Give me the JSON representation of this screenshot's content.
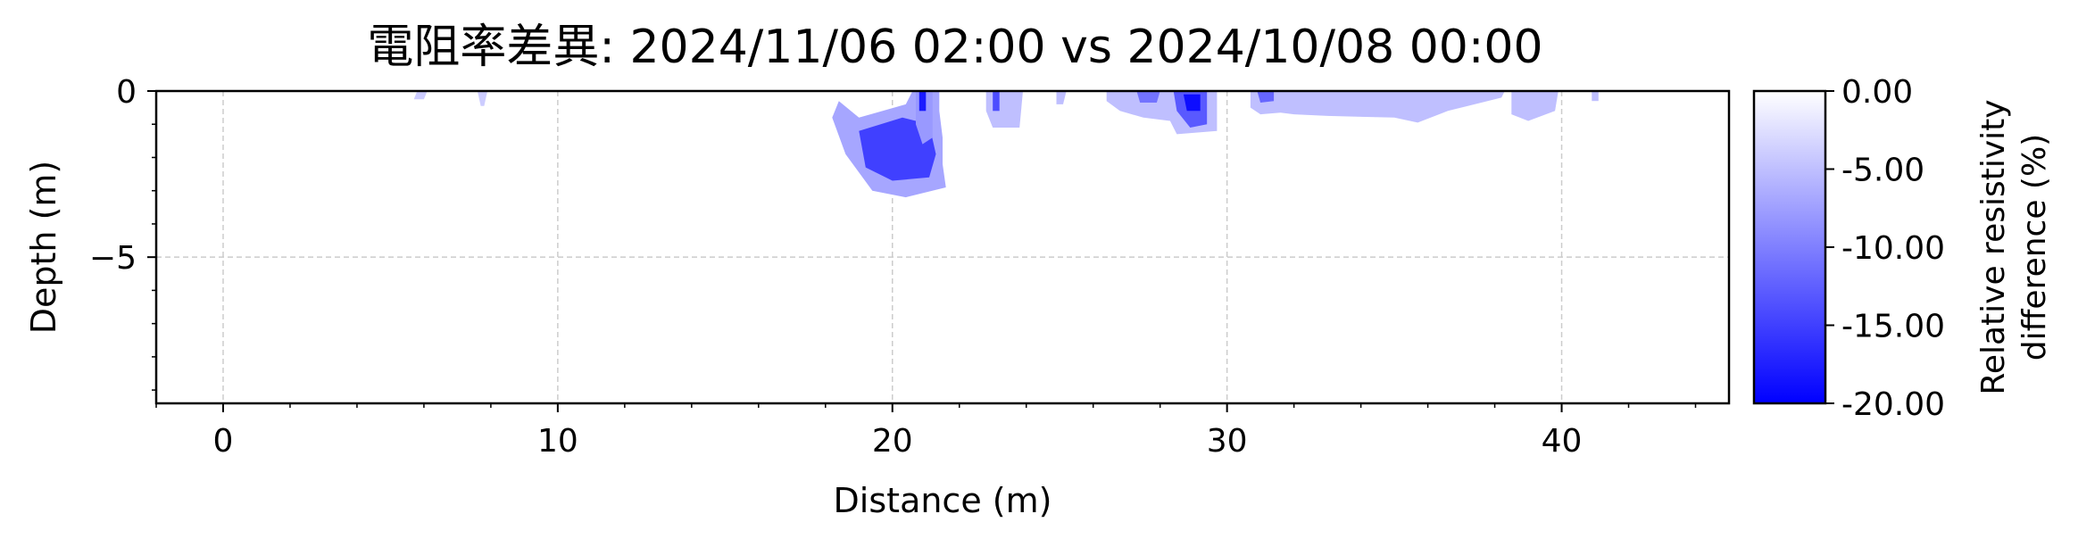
{
  "chart_data": {
    "type": "heatmap",
    "title": "電阻率差異: 2024/11/06 02:00 vs 2024/10/08 00:00",
    "xlabel": "Distance (m)",
    "ylabel": "Depth (m)",
    "xlim": [
      -2,
      45
    ],
    "ylim": [
      -9.4,
      0
    ],
    "x_ticks": [
      0,
      10,
      20,
      30,
      40
    ],
    "x_tick_labels": [
      "0",
      "10",
      "20",
      "30",
      "40"
    ],
    "y_ticks": [
      0,
      -5
    ],
    "y_tick_labels": [
      "0",
      "−5"
    ],
    "grid": true,
    "colorbar": {
      "label": "Relative resistivity\ndifference (%)",
      "label_lines": [
        "Relative resistivity",
        "difference (%)"
      ],
      "range": [
        -20,
        0
      ],
      "ticks": [
        0,
        -5,
        -10,
        -15,
        -20
      ],
      "tick_labels": [
        "0.00",
        "-5.00",
        "-10.00",
        "-15.00",
        "-20.00"
      ],
      "colors": [
        "#0000ff",
        "#ffffff"
      ]
    },
    "regions": [
      {
        "value": -4,
        "points": [
          [
            5.8,
            0
          ],
          [
            6.1,
            0
          ],
          [
            6.0,
            -0.25
          ],
          [
            5.7,
            -0.25
          ]
        ]
      },
      {
        "value": -4,
        "points": [
          [
            7.6,
            0
          ],
          [
            7.9,
            0
          ],
          [
            7.8,
            -0.45
          ],
          [
            7.7,
            -0.45
          ]
        ]
      },
      {
        "value": -7,
        "points": [
          [
            18.4,
            -0.3
          ],
          [
            19.0,
            -0.8
          ],
          [
            20.4,
            -0.4
          ],
          [
            20.6,
            0
          ],
          [
            21.4,
            0
          ],
          [
            21.4,
            -0.6
          ],
          [
            21.5,
            -1.4
          ],
          [
            21.5,
            -2.2
          ],
          [
            21.6,
            -2.9
          ],
          [
            20.4,
            -3.2
          ],
          [
            19.4,
            -3.0
          ],
          [
            18.6,
            -1.9
          ],
          [
            18.2,
            -0.8
          ]
        ]
      },
      {
        "value": -15,
        "points": [
          [
            19.0,
            -1.2
          ],
          [
            20.3,
            -0.8
          ],
          [
            21.1,
            -1.0
          ],
          [
            21.3,
            -1.9
          ],
          [
            21.1,
            -2.6
          ],
          [
            20.0,
            -2.7
          ],
          [
            19.2,
            -2.3
          ]
        ]
      },
      {
        "value": -8,
        "points": [
          [
            20.7,
            0
          ],
          [
            21.2,
            0
          ],
          [
            21.2,
            -1.4
          ],
          [
            20.9,
            -1.6
          ],
          [
            20.7,
            -1.0
          ]
        ]
      },
      {
        "value": -18,
        "points": [
          [
            20.8,
            0
          ],
          [
            21.0,
            0
          ],
          [
            21.0,
            -0.6
          ],
          [
            20.8,
            -0.6
          ]
        ]
      },
      {
        "value": -5,
        "points": [
          [
            22.8,
            0
          ],
          [
            23.9,
            0
          ],
          [
            23.8,
            -1.1
          ],
          [
            23.0,
            -1.1
          ],
          [
            22.8,
            -0.6
          ]
        ]
      },
      {
        "value": -14,
        "points": [
          [
            23.0,
            0
          ],
          [
            23.2,
            0
          ],
          [
            23.2,
            -0.6
          ],
          [
            23.0,
            -0.6
          ]
        ]
      },
      {
        "value": -5,
        "points": [
          [
            24.9,
            0
          ],
          [
            25.2,
            0
          ],
          [
            25.1,
            -0.4
          ],
          [
            24.9,
            -0.4
          ]
        ]
      },
      {
        "value": -5,
        "points": [
          [
            26.4,
            0
          ],
          [
            29.7,
            0
          ],
          [
            29.7,
            -1.2
          ],
          [
            28.5,
            -1.3
          ],
          [
            28.3,
            -0.9
          ],
          [
            27.5,
            -0.8
          ],
          [
            26.8,
            -0.6
          ],
          [
            26.4,
            -0.3
          ]
        ]
      },
      {
        "value": -11,
        "points": [
          [
            27.3,
            0
          ],
          [
            28.0,
            0
          ],
          [
            27.9,
            -0.35
          ],
          [
            27.4,
            -0.35
          ]
        ]
      },
      {
        "value": -13,
        "points": [
          [
            28.4,
            0
          ],
          [
            29.4,
            0
          ],
          [
            29.4,
            -1.0
          ],
          [
            28.9,
            -1.1
          ],
          [
            28.5,
            -0.6
          ]
        ]
      },
      {
        "value": -19,
        "points": [
          [
            28.7,
            -0.1
          ],
          [
            29.2,
            -0.1
          ],
          [
            29.2,
            -0.6
          ],
          [
            28.8,
            -0.6
          ]
        ]
      },
      {
        "value": -5,
        "points": [
          [
            30.7,
            0
          ],
          [
            38.3,
            0
          ],
          [
            38.2,
            -0.2
          ],
          [
            36.6,
            -0.6
          ],
          [
            35.7,
            -0.95
          ],
          [
            35.0,
            -0.8
          ],
          [
            33.0,
            -0.75
          ],
          [
            32.0,
            -0.7
          ],
          [
            31.6,
            -0.65
          ],
          [
            31.0,
            -0.7
          ],
          [
            30.7,
            -0.5
          ]
        ]
      },
      {
        "value": -12,
        "points": [
          [
            30.9,
            0
          ],
          [
            31.4,
            0
          ],
          [
            31.4,
            -0.3
          ],
          [
            31.0,
            -0.35
          ]
        ]
      },
      {
        "value": -5,
        "points": [
          [
            38.5,
            0
          ],
          [
            39.9,
            0
          ],
          [
            39.8,
            -0.6
          ],
          [
            39.0,
            -0.9
          ],
          [
            38.5,
            -0.7
          ]
        ]
      },
      {
        "value": -5,
        "points": [
          [
            40.9,
            0
          ],
          [
            41.1,
            0
          ],
          [
            41.1,
            -0.3
          ],
          [
            40.9,
            -0.3
          ]
        ]
      }
    ]
  }
}
